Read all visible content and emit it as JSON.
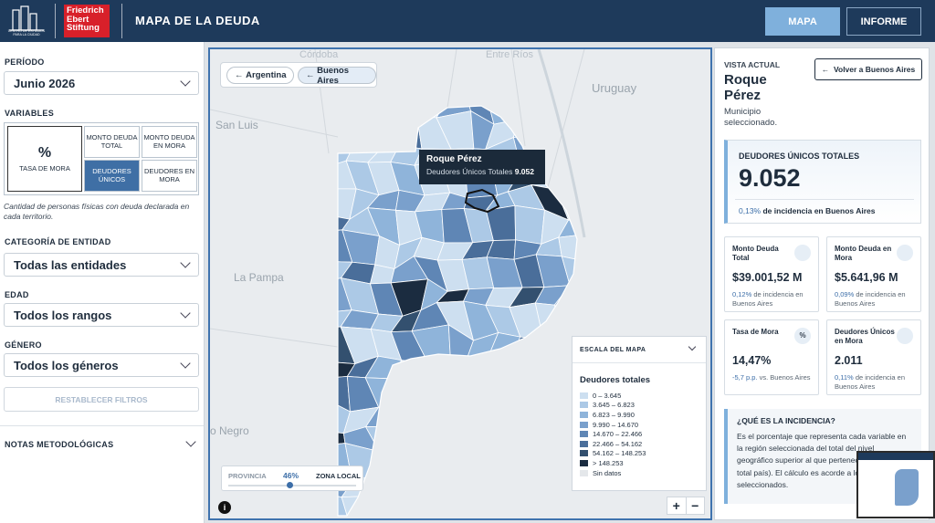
{
  "header": {
    "logo_caption": "CENTRO DE ESTUDIOS PARA LA CIUDAD",
    "brand": [
      "Friedrich",
      "Ebert",
      "Stiftung"
    ],
    "title": "MAPA DE LA DEUDA",
    "nav": [
      "MAPA",
      "INFORME"
    ]
  },
  "filters": {
    "period_label": "PERÍODO",
    "period": "Junio 2026",
    "variables_label": "VARIABLES",
    "tasa_icon": "%",
    "variables": [
      "TASA DE MORA",
      "MONTO DEUDA TOTAL",
      "MONTO DEUDA EN MORA",
      "DEUDORES ÚNICOS",
      "DEUDORES EN MORA"
    ],
    "variable_note": "Cantidad de personas físicas con deuda declarada en cada territorio.",
    "entity_label": "CATEGORÍA DE ENTIDAD",
    "entity": "Todas las entidades",
    "age_label": "EDAD",
    "age": "Todos los rangos",
    "gender_label": "GÉNERO",
    "gender": "Todos los géneros",
    "reset": "RESTABLECER FILTROS",
    "notes": "NOTAS METODOLÓGICAS"
  },
  "map": {
    "breadcrumbs": [
      "Argentina",
      "Buenos Aires"
    ],
    "places": [
      "Córdoba",
      "Entre Ríos",
      "Uruguay",
      "San Luis",
      "La Pampa",
      "o Negro"
    ],
    "tooltip": {
      "name": "Roque Pérez",
      "label": "Deudores Únicos Totales",
      "value": "9.052"
    },
    "scale_label": "ESCALA DEL MAPA",
    "legend_title": "Deudores totales",
    "legend": [
      "0 – 3.645",
      "3.645 – 6.823",
      "6.823 – 9.990",
      "9.990 – 14.670",
      "14.670 – 22.466",
      "22.466 – 54.162",
      "54.162 – 148.253",
      "> 148.253",
      "Sin datos"
    ],
    "slider": {
      "left": "PROVINCIA",
      "value": "46%",
      "right": "ZONA LOCAL"
    },
    "zoom": [
      "+",
      "−"
    ],
    "info": "i"
  },
  "detail": {
    "view_label": "VISTA ACTUAL",
    "back": "Volver a Buenos Aires",
    "name": "Roque Pérez",
    "subtitle": "Municipio seleccionado.",
    "main": {
      "title": "DEUDORES ÚNICOS TOTALES",
      "value": "9.052",
      "pct": "0,13%",
      "note": "de incidencia en Buenos Aires"
    },
    "cards": [
      {
        "title": "Monto Deuda Total",
        "value": "$39.001,52 M",
        "pct": "0,12%",
        "note": "de incidencia en Buenos Aires"
      },
      {
        "title": "Monto Deuda en Mora",
        "value": "$5.641,96 M",
        "pct": "0,09%",
        "note": "de incidencia en Buenos Aires"
      },
      {
        "title": "Tasa de Mora",
        "icon": "%",
        "value": "14,47%",
        "pct": "-5,7 p.p.",
        "note": "vs. Buenos Aires"
      },
      {
        "title": "Deudores Únicos en Mora",
        "value": "2.011",
        "pct": "0,11%",
        "note": "de incidencia en Buenos Aires"
      }
    ],
    "incidence": {
      "title": "¿QUÉ ES LA INCIDENCIA?",
      "text": "Es el porcentaje que representa cada variable en la región seleccionada del total del nivel geográfico superior al que pertenece (provincia o total país). El cálculo es acorde a los filtros seleccionados."
    }
  }
}
